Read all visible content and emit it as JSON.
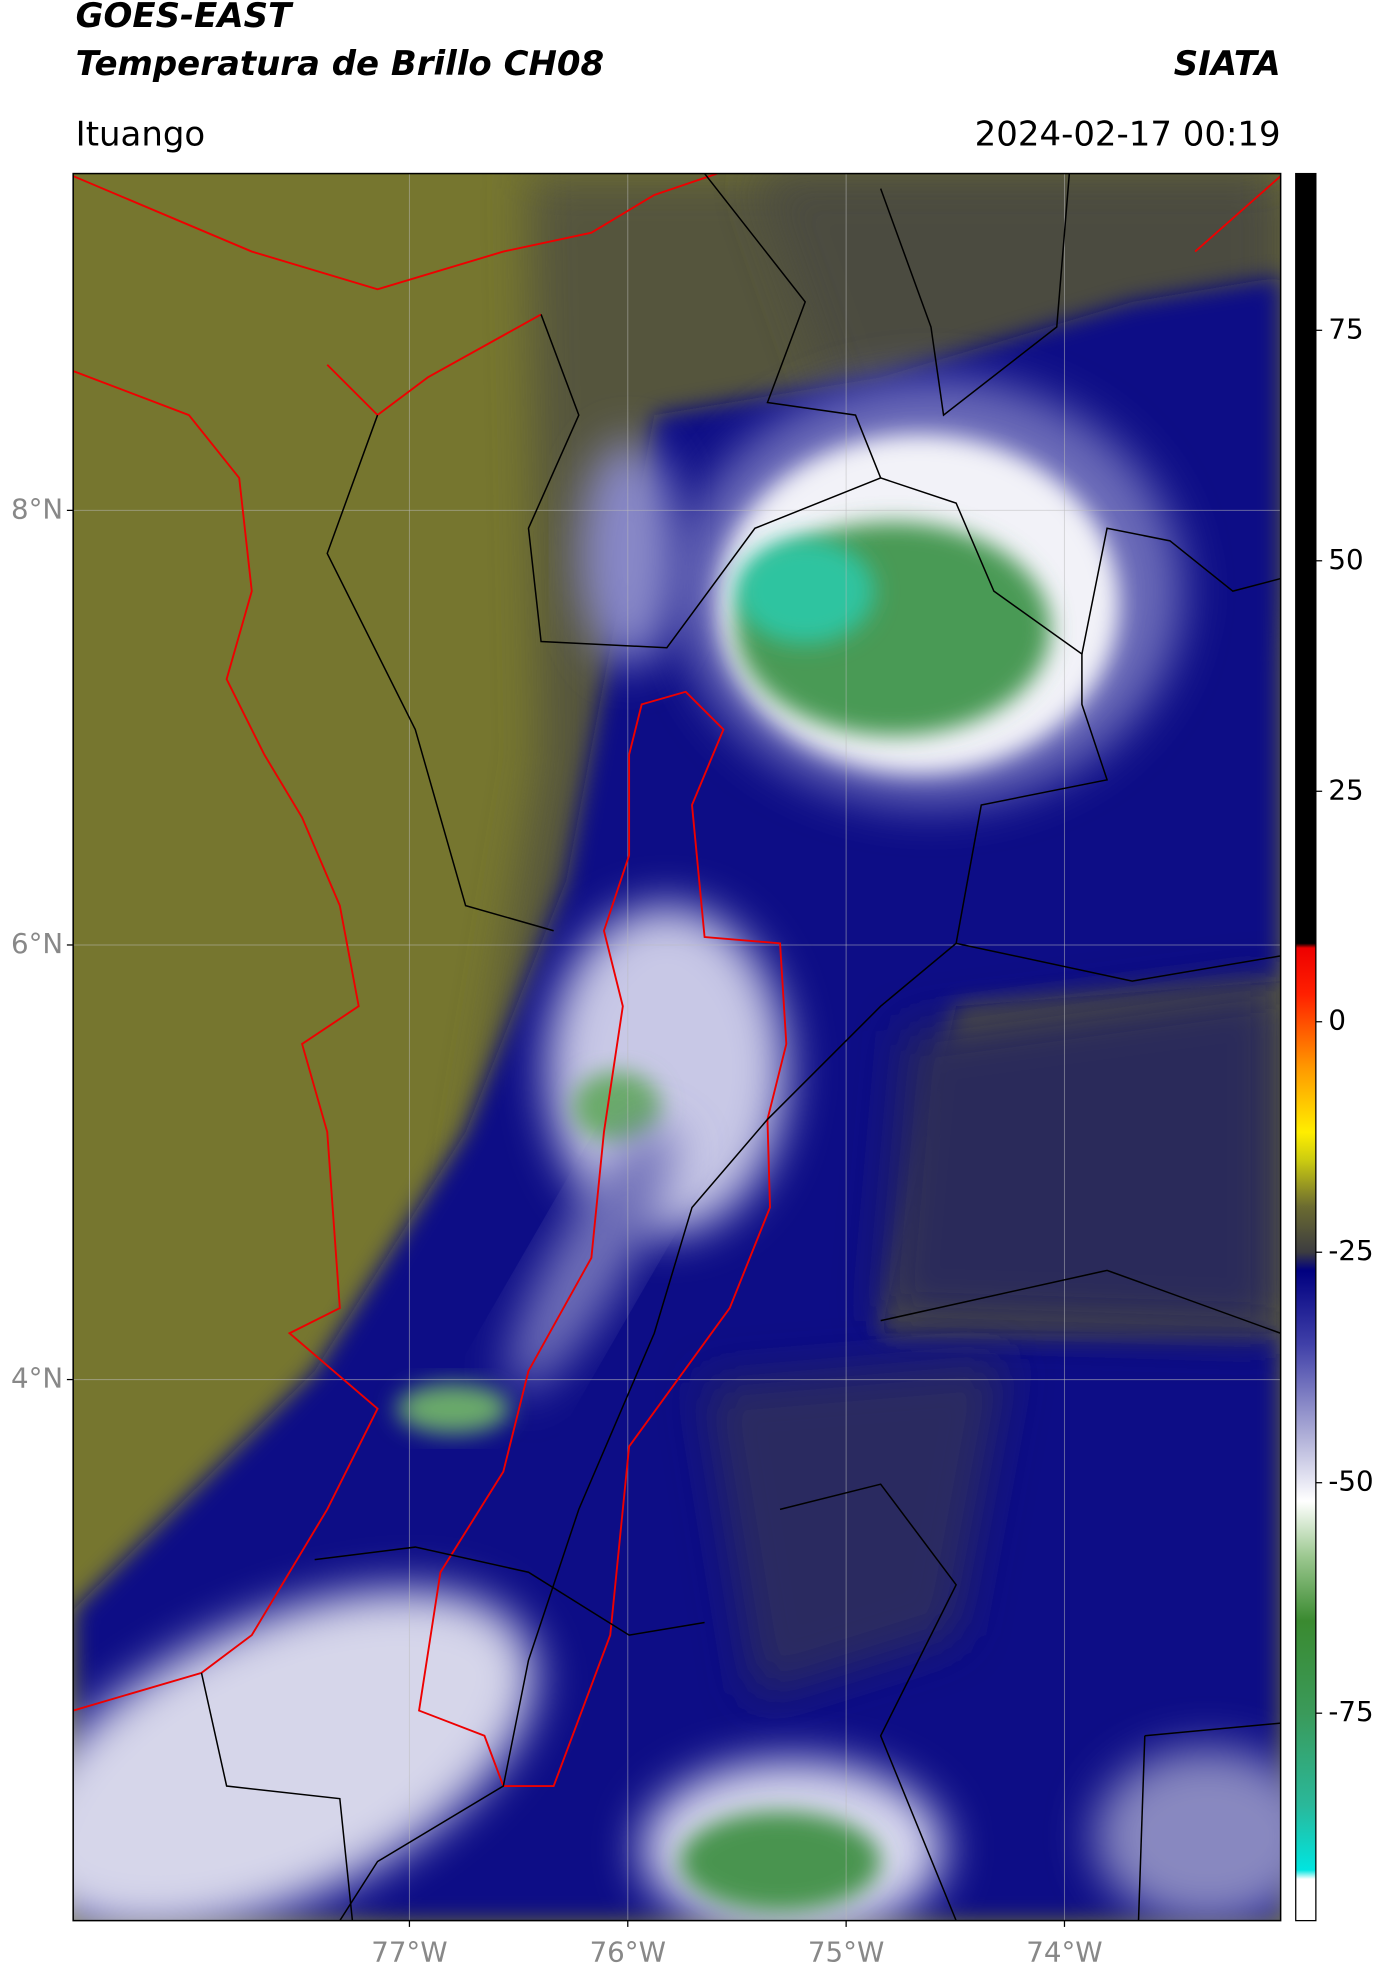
{
  "header": {
    "title": "GOES-EAST",
    "subtitle": "Temperatura de Brillo CH08",
    "brand": "SIATA",
    "place": "Ituango",
    "datetime": "2024-02-17 00:19"
  },
  "map": {
    "lonlim": [
      -78.54,
      -73.01
    ],
    "latlim": [
      1.51,
      9.55
    ],
    "lonticks": [
      {
        "value": -77,
        "label": "77°W"
      },
      {
        "value": -76,
        "label": "76°W"
      },
      {
        "value": -75,
        "label": "75°W"
      },
      {
        "value": -74,
        "label": "74°W"
      }
    ],
    "latticks": [
      {
        "value": 8,
        "label": "8°N"
      },
      {
        "value": 6,
        "label": "6°N"
      },
      {
        "value": 4,
        "label": "4°N"
      }
    ],
    "grid": true
  },
  "colorbar": {
    "lim": [
      -97.5,
      92
    ],
    "ticks": [
      75,
      50,
      25,
      0,
      -25,
      -50,
      -75
    ],
    "stops": [
      {
        "value": -97.5,
        "color": "#ffffff"
      },
      {
        "value": -93,
        "color": "#ffffff"
      },
      {
        "value": -92,
        "color": "#00e5e0"
      },
      {
        "value": -85,
        "color": "#2ab89a"
      },
      {
        "value": -75,
        "color": "#3a9a5a"
      },
      {
        "value": -65,
        "color": "#3a8a30"
      },
      {
        "value": -58,
        "color": "#9cc890"
      },
      {
        "value": -52,
        "color": "#ffffff"
      },
      {
        "value": -45,
        "color": "#b0b0d8"
      },
      {
        "value": -35,
        "color": "#4040a8"
      },
      {
        "value": -27,
        "color": "#000080"
      },
      {
        "value": -25,
        "color": "#3c3c40"
      },
      {
        "value": -20,
        "color": "#6c6c30"
      },
      {
        "value": -15,
        "color": "#cccc10"
      },
      {
        "value": -12,
        "color": "#ffee00"
      },
      {
        "value": -5,
        "color": "#ff9900"
      },
      {
        "value": 3,
        "color": "#ff2000"
      },
      {
        "value": 8,
        "color": "#ee0000"
      },
      {
        "value": 8.5,
        "color": "#000000"
      },
      {
        "value": 92,
        "color": "#000000"
      }
    ]
  }
}
